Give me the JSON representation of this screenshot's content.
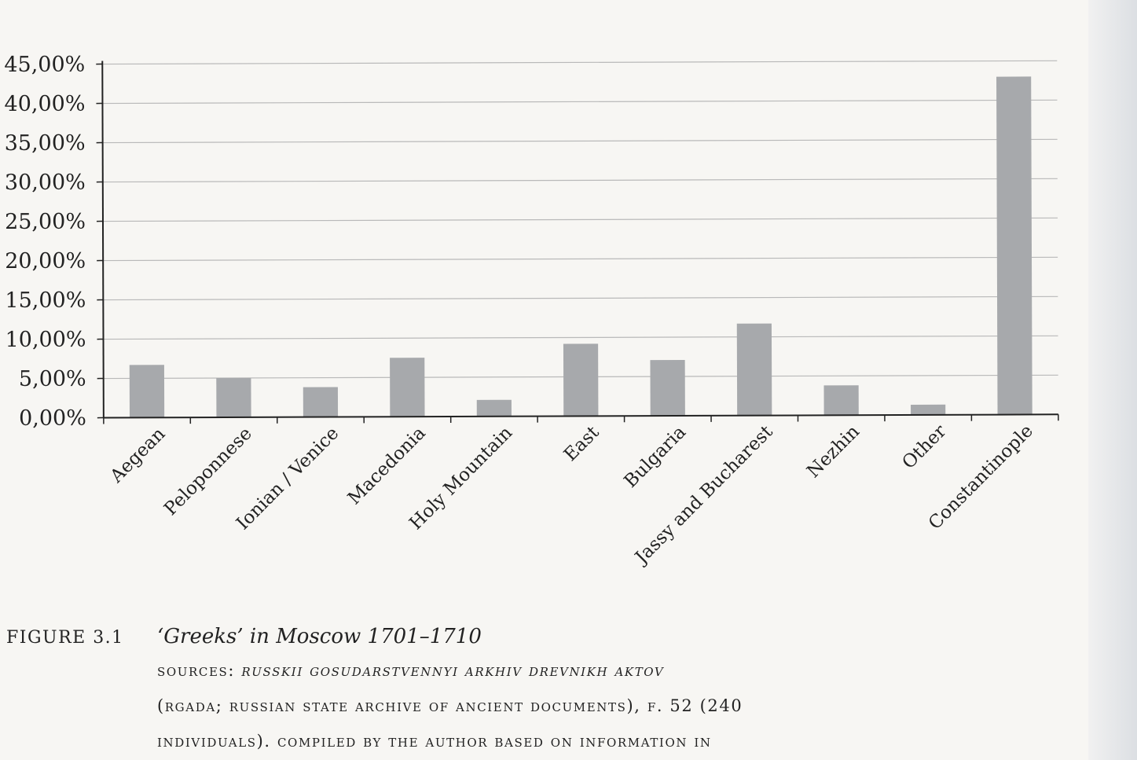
{
  "chart_data": {
    "type": "bar",
    "categories": [
      "Aegean",
      "Peloponnese",
      "Ionian / Venice",
      "Macedonia",
      "Holy Mountain",
      "East",
      "Bulgaria",
      "Jassy and Bucharest",
      "Nezhin",
      "Other",
      "Constantinople"
    ],
    "values": [
      6.7,
      5.0,
      3.8,
      7.5,
      2.1,
      9.2,
      7.1,
      11.7,
      3.8,
      1.3,
      43.0
    ],
    "ylim": [
      0,
      45
    ],
    "yticks": [
      "0,00%",
      "5,00%",
      "10,00%",
      "15,00%",
      "20,00%",
      "25,00%",
      "30,00%",
      "35,00%",
      "40,00%",
      "45,00%"
    ],
    "grid": true,
    "bar_color": "#a7a9ac",
    "title": "",
    "xlabel": "",
    "ylabel": ""
  },
  "caption": {
    "figure_label": "FIGURE 3.1",
    "title": "‘Greeks’ in Moscow 1701–1710",
    "sources_prefix": "SOURCES: ",
    "sources_italic": "RUSSKII GOSUDARSTVENNYI ARKHIV DREVNIKH AKTOV",
    "sources_line2": "(RGADA; RUSSIAN STATE ARCHIVE OF ANCIENT DOCUMENTS), F. 52 (240",
    "sources_line3": "INDIVIDUALS). COMPILED BY THE AUTHOR BASED ON INFORMATION IN"
  }
}
